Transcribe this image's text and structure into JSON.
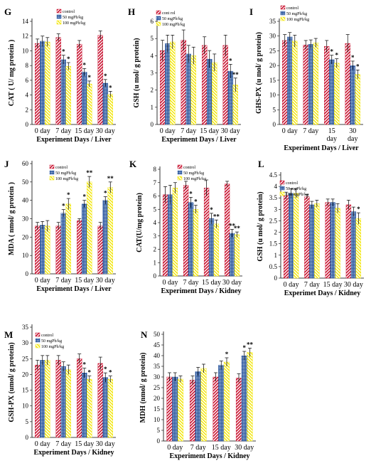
{
  "series_style": {
    "control": {
      "color": "#c8102e",
      "pattern": "diag"
    },
    "lead_50": {
      "color": "#1f4e99",
      "pattern": "grid"
    },
    "lead_100": {
      "color": "#f2e600",
      "pattern": "diag2"
    }
  },
  "chart_data": [
    {
      "id": "G",
      "type": "bar",
      "letter": "G",
      "categories": [
        "0 day",
        "7 day",
        "15 day",
        "30 day"
      ],
      "xlabel": "Experiment Days / Liver",
      "ylabel": "CAT ( U/ mg protein )",
      "ylim": [
        0,
        14
      ],
      "yticks": [
        0,
        2,
        4,
        6,
        8,
        10,
        12,
        14
      ],
      "legend": [
        "control",
        "50 mgPb/kg",
        "100 mgPb/kg"
      ],
      "series": [
        {
          "name": "control",
          "values": [
            11.0,
            11.8,
            10.9,
            12.1
          ],
          "err": [
            0.6,
            0.5,
            0.5,
            0.6
          ]
        },
        {
          "name": "50 mgPb/kg",
          "values": [
            11.3,
            8.8,
            7.1,
            5.6
          ],
          "err": [
            0.7,
            0.6,
            0.5,
            0.5
          ]
        },
        {
          "name": "100 mgPb/kg",
          "values": [
            11.2,
            7.9,
            5.5,
            4.1
          ],
          "err": [
            0.6,
            0.5,
            0.4,
            0.4
          ]
        }
      ],
      "stars": [
        [
          "",
          "",
          ""
        ],
        [
          "",
          "*",
          "*"
        ],
        [
          "",
          "*",
          "*"
        ],
        [
          "",
          "*",
          "*"
        ]
      ]
    },
    {
      "id": "H",
      "type": "bar",
      "letter": "H",
      "categories": [
        "0 day",
        "7 day",
        "15 day",
        "30 day"
      ],
      "xlabel": "Experiment Days / Liver",
      "ylabel": "GSH (u mol/ g protein)",
      "ylim": [
        0,
        6
      ],
      "yticks": [
        0,
        1,
        2,
        3,
        4,
        5,
        6
      ],
      "legend": [
        "cont rol",
        "50 mgPb/kg",
        "100 mgPb/kg"
      ],
      "series": [
        {
          "name": "cont rol",
          "values": [
            4.3,
            4.9,
            4.6,
            4.6
          ],
          "err": [
            0.6,
            0.6,
            0.5,
            0.6
          ]
        },
        {
          "name": "50 mgPb/kg",
          "values": [
            4.7,
            4.1,
            3.8,
            3.1
          ],
          "err": [
            0.5,
            0.5,
            0.5,
            0.4
          ]
        },
        {
          "name": "100 mgPb/kg",
          "values": [
            4.8,
            4.0,
            3.6,
            2.3
          ],
          "err": [
            0.4,
            0.5,
            0.5,
            0.4
          ]
        }
      ],
      "stars": [
        [
          "",
          "",
          ""
        ],
        [
          "",
          "",
          ""
        ],
        [
          "",
          "",
          ""
        ],
        [
          "",
          "*",
          "**"
        ]
      ]
    },
    {
      "id": "I",
      "type": "bar",
      "letter": "I",
      "categories": [
        "0 day",
        "7 day",
        "15\nday",
        "30\nday"
      ],
      "xlabel": "Experiment Days / Liver",
      "ylabel": "GHS-PX (u mol/ g protein)",
      "ylim": [
        0,
        35
      ],
      "yticks": [
        0,
        5,
        10,
        15,
        20,
        25,
        30,
        35
      ],
      "legend": [
        "control",
        "50 mgPb/kg",
        "100 mgPb/kg"
      ],
      "series": [
        {
          "name": "control",
          "values": [
            28.5,
            27.0,
            26.5,
            27.5
          ],
          "err": [
            2.0,
            1.5,
            2.0,
            3.0
          ]
        },
        {
          "name": "50 mgPb/kg",
          "values": [
            29.7,
            27.2,
            22.0,
            20.0
          ],
          "err": [
            1.5,
            1.5,
            1.5,
            1.5
          ]
        },
        {
          "name": "100 mgPb/kg",
          "values": [
            28.3,
            27.7,
            20.8,
            17.0
          ],
          "err": [
            2.0,
            1.5,
            1.5,
            1.5
          ]
        }
      ],
      "stars": [
        [
          "",
          "",
          ""
        ],
        [
          "",
          "",
          ""
        ],
        [
          "",
          "*",
          "*"
        ],
        [
          "",
          "*",
          "*"
        ]
      ]
    },
    {
      "id": "J",
      "type": "bar",
      "letter": "J",
      "categories": [
        "0 day",
        "7 day",
        "15 day",
        "30 day"
      ],
      "xlabel": "Experiment Days / Liver",
      "ylabel": "MDA ( nmol/ g protein )",
      "ylim": [
        0,
        60
      ],
      "yticks": [
        0,
        10,
        20,
        30,
        40,
        50,
        60
      ],
      "legend": [
        "control",
        "50 mgPb/kg",
        "100 mgPb/kg"
      ],
      "series": [
        {
          "name": "control",
          "values": [
            26,
            26,
            29,
            26
          ],
          "err": [
            2,
            2,
            1,
            2
          ]
        },
        {
          "name": "50 mgPb/kg",
          "values": [
            26.5,
            33,
            38,
            40
          ],
          "err": [
            2,
            2,
            2,
            2
          ]
        },
        {
          "name": "100 mgPb/kg",
          "values": [
            26,
            38,
            50,
            47
          ],
          "err": [
            3,
            3,
            3,
            3
          ]
        }
      ],
      "stars": [
        [
          "",
          "",
          ""
        ],
        [
          "",
          "*",
          "*"
        ],
        [
          "",
          "*",
          "**"
        ],
        [
          "",
          "*",
          "**"
        ]
      ]
    },
    {
      "id": "K",
      "type": "bar",
      "letter": "K",
      "categories": [
        "0 day",
        "7 day",
        "15 day",
        "30 day"
      ],
      "xlabel": "Experiment Days / Kidney",
      "ylabel": "CAT(U/mg protein)",
      "ylim": [
        0,
        8
      ],
      "yticks": [
        0,
        1,
        2,
        3,
        4,
        5,
        6,
        7,
        8
      ],
      "legend": [
        "control",
        "50 mgPb/kg",
        "100 mgPb/kg"
      ],
      "series": [
        {
          "name": "control",
          "values": [
            6.1,
            6.8,
            6.6,
            6.9
          ],
          "err": [
            0.6,
            0.3,
            0.6,
            0.2
          ]
        },
        {
          "name": "50 mgPb/kg",
          "values": [
            6.1,
            5.5,
            4.3,
            3.2
          ],
          "err": [
            0.7,
            0.4,
            0.4,
            0.3
          ]
        },
        {
          "name": "100 mgPb/kg",
          "values": [
            6.6,
            5.0,
            3.9,
            3.1
          ],
          "err": [
            0.4,
            0.3,
            0.3,
            0.2
          ]
        }
      ],
      "stars": [
        [
          "",
          "",
          ""
        ],
        [
          "",
          "*",
          "*"
        ],
        [
          "",
          "*",
          "**"
        ],
        [
          "",
          "**",
          "**"
        ]
      ]
    },
    {
      "id": "L",
      "type": "bar",
      "letter": "L",
      "categories": [
        "0 day",
        "7 day",
        "15 day",
        "30 day"
      ],
      "xlabel": "Experimet Days / Kidney",
      "ylabel": "GSH (u mol/ g protein)",
      "ylim": [
        0,
        4.5
      ],
      "yticks": [
        0,
        0.5,
        1,
        1.5,
        2,
        2.5,
        3,
        3.5,
        4,
        4.5
      ],
      "legend": [
        "control",
        "50 mgPb/kg",
        "100 mgPb/kg"
      ],
      "series": [
        {
          "name": "control",
          "values": [
            3.6,
            3.55,
            3.3,
            3.2
          ],
          "err": [
            0.15,
            0.1,
            0.15,
            0.2
          ]
        },
        {
          "name": "50 mgPb/kg",
          "values": [
            3.7,
            3.2,
            3.3,
            2.9
          ],
          "err": [
            0.2,
            0.15,
            0.15,
            0.2
          ]
        },
        {
          "name": "100 mgPb/kg",
          "values": [
            3.7,
            3.25,
            3.05,
            2.6
          ],
          "err": [
            0.2,
            0.15,
            0.2,
            0.25
          ]
        }
      ],
      "stars": [
        [
          "",
          "",
          ""
        ],
        [
          "",
          "",
          ""
        ],
        [
          "",
          "",
          ""
        ],
        [
          "",
          "",
          "*"
        ]
      ]
    },
    {
      "id": "M",
      "type": "bar",
      "letter": "M",
      "categories": [
        "0 day",
        "7 day",
        "15 day",
        "30 day"
      ],
      "xlabel": "Experiment Days / Kidney",
      "ylabel": "GSH-PX (umol/ g protein)",
      "ylim": [
        0,
        35
      ],
      "yticks": [
        0,
        5,
        10,
        15,
        20,
        25,
        30,
        35
      ],
      "legend": [
        "control",
        "50 mgPb/kg",
        "100 mgPb/kg"
      ],
      "series": [
        {
          "name": "control",
          "values": [
            23,
            24.5,
            25,
            23.5
          ],
          "err": [
            1.5,
            1.5,
            1.5,
            2
          ]
        },
        {
          "name": "50 mgPb/kg",
          "values": [
            24.5,
            22.5,
            20.5,
            19
          ],
          "err": [
            1.5,
            1.5,
            1.5,
            1.5
          ]
        },
        {
          "name": "100 mgPb/kg",
          "values": [
            24.5,
            21.5,
            18.5,
            18.5
          ],
          "err": [
            1.5,
            1.5,
            1,
            1
          ]
        }
      ],
      "stars": [
        [
          "",
          "",
          ""
        ],
        [
          "",
          "",
          ""
        ],
        [
          "",
          "*",
          "*"
        ],
        [
          "",
          "*",
          "*"
        ]
      ]
    },
    {
      "id": "N",
      "type": "bar",
      "letter": "N",
      "categories": [
        "0 day",
        "7 day",
        "15 day",
        "30 day"
      ],
      "xlabel": "Experiment Days / Kidney",
      "ylabel": "MDH (nmol/ g protein)",
      "ylim": [
        0,
        50
      ],
      "yticks": [
        0,
        5,
        10,
        15,
        20,
        25,
        30,
        35,
        40,
        45,
        50
      ],
      "legend": [],
      "series": [
        {
          "name": "control",
          "values": [
            30,
            28.5,
            30,
            29.5
          ],
          "err": [
            2,
            2,
            2,
            2
          ]
        },
        {
          "name": "50 mgPb/kg",
          "values": [
            30,
            32.5,
            35.5,
            40
          ],
          "err": [
            2,
            2,
            2,
            2
          ]
        },
        {
          "name": "100 mgPb/kg",
          "values": [
            29,
            34,
            37,
            41.5
          ],
          "err": [
            1.5,
            2,
            2,
            2
          ]
        }
      ],
      "stars": [
        [
          "",
          "",
          ""
        ],
        [
          "",
          "",
          ""
        ],
        [
          "",
          "",
          "*"
        ],
        [
          "",
          "*",
          "**"
        ]
      ]
    }
  ]
}
